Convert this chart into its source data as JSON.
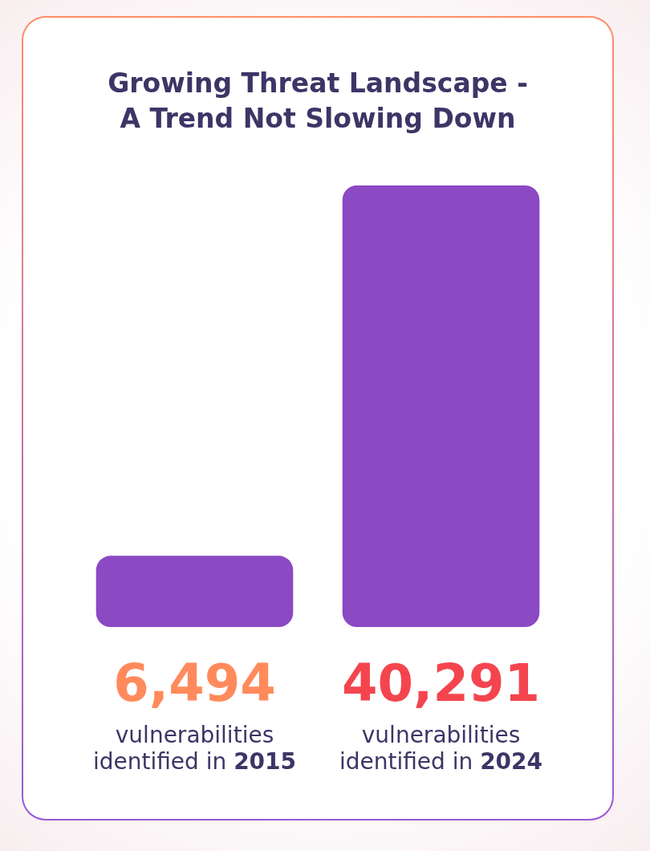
{
  "chart_data": {
    "type": "bar",
    "title": "Growing Threat Landscape - A Trend Not Slowing Down",
    "categories": [
      "vulnerabilities identified in 2015",
      "vulnerabilities identified in 2024"
    ],
    "values": [
      6494,
      40291
    ],
    "color": "#8b49c4",
    "value_labels": [
      "6,494",
      "40,291"
    ]
  }
}
